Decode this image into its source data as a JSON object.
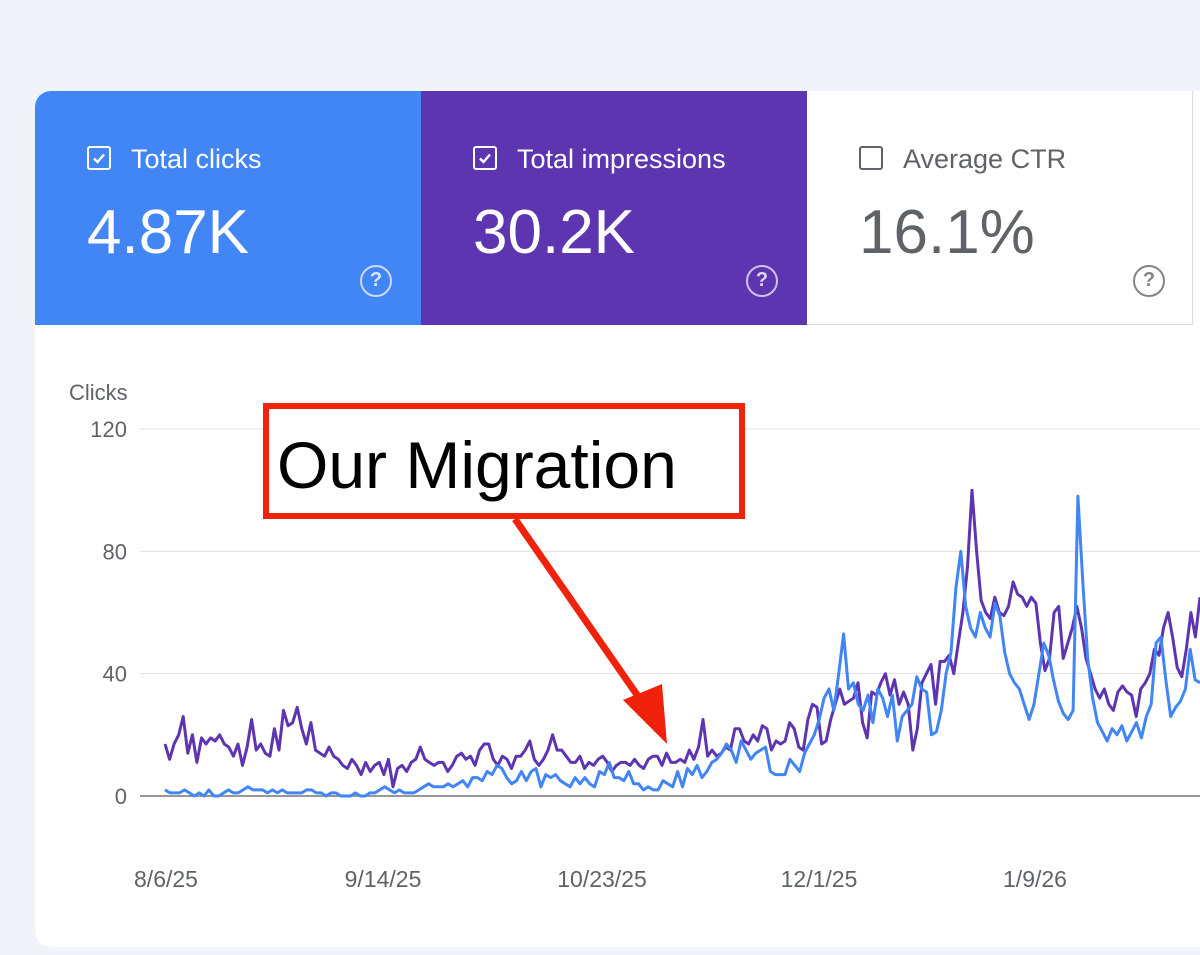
{
  "summary_cards": {
    "clicks": {
      "label": "Total clicks",
      "value": "4.87K",
      "checked": true,
      "color": "#4285f4"
    },
    "impressions": {
      "label": "Total impressions",
      "value": "30.2K",
      "checked": true,
      "color": "#5e35b1"
    },
    "ctr": {
      "label": "Average CTR",
      "value": "16.1%",
      "checked": false
    }
  },
  "help_glyph": "?",
  "annotation": {
    "text": "Our Migration",
    "color": "#f0220b"
  },
  "chart_data": {
    "type": "line",
    "ylabel": "Clicks",
    "ylim": [
      0,
      120
    ],
    "yticks": [
      "120",
      "80",
      "40",
      "0"
    ],
    "xticks": [
      "8/6/25",
      "9/14/25",
      "10/23/25",
      "12/1/25",
      "1/9/26"
    ],
    "grid": true,
    "x_start": "8/6/25",
    "series": [
      {
        "color": "#5e35b1",
        "values": [
          17,
          12,
          17,
          20,
          26,
          14,
          20,
          11,
          19,
          17,
          19,
          18,
          20,
          17,
          16,
          13,
          17,
          10,
          16,
          25,
          15,
          17,
          14,
          13,
          22,
          15,
          28,
          23,
          24,
          29,
          22,
          17,
          24,
          15,
          14,
          13,
          16,
          13,
          12,
          10,
          9,
          12,
          10,
          7,
          11,
          8,
          10,
          11,
          7,
          12,
          3,
          9,
          10,
          8,
          11,
          12,
          16,
          12,
          11,
          10,
          11,
          11,
          8,
          10,
          13,
          14,
          12,
          13,
          10,
          15,
          17,
          17,
          12,
          10,
          13,
          12,
          9,
          13,
          13,
          15,
          18,
          12,
          10,
          12,
          15,
          20,
          15,
          15,
          13,
          11,
          11,
          13,
          9,
          11,
          10,
          12,
          13,
          11,
          8,
          10,
          11,
          11,
          10,
          12,
          10,
          9,
          12,
          13,
          13,
          10,
          14,
          11,
          11,
          12,
          11,
          15,
          12,
          16,
          25,
          13,
          15,
          13,
          14,
          16,
          15,
          22,
          22,
          18,
          17,
          20,
          18,
          23,
          22,
          15,
          18,
          17,
          18,
          24,
          22,
          16,
          15,
          25,
          30,
          29,
          17,
          18,
          25,
          30,
          35,
          30,
          31,
          32,
          37,
          24,
          19,
          34,
          33,
          37,
          40,
          33,
          38,
          30,
          34,
          30,
          15,
          22,
          37,
          40,
          43,
          30,
          44,
          44,
          46,
          40,
          50,
          60,
          75,
          100,
          80,
          64,
          60,
          58,
          65,
          60,
          59,
          62,
          70,
          66,
          65,
          62,
          65,
          63,
          50,
          41,
          45,
          60,
          62,
          45,
          50,
          55,
          62,
          55,
          45,
          40,
          35,
          32,
          35,
          30,
          28,
          34,
          36,
          34,
          33,
          26,
          35,
          37,
          40,
          48,
          46,
          55,
          60,
          52,
          42,
          39,
          48,
          60,
          52,
          65
        ],
        "name": ""
      },
      {
        "color": "#4285f4",
        "values": [
          2,
          1,
          1,
          1,
          2,
          1,
          0,
          1,
          0,
          2,
          0,
          0,
          1,
          2,
          1,
          1,
          2,
          3,
          2,
          2,
          2,
          1,
          2,
          1,
          2,
          1,
          1,
          1,
          1,
          2,
          2,
          1,
          1,
          0,
          1,
          1,
          0,
          0,
          0,
          1,
          0,
          0,
          1,
          1,
          2,
          3,
          2,
          1,
          2,
          1,
          1,
          1,
          2,
          3,
          4,
          3,
          3,
          3,
          4,
          3,
          4,
          5,
          3,
          6,
          6,
          5,
          8,
          7,
          10,
          9,
          6,
          4,
          5,
          8,
          5,
          8,
          9,
          3,
          7,
          6,
          7,
          5,
          4,
          3,
          6,
          4,
          6,
          4,
          3,
          8,
          7,
          11,
          6,
          6,
          5,
          8,
          4,
          4,
          2,
          3,
          2,
          2,
          5,
          4,
          3,
          8,
          3,
          9,
          7,
          10,
          6,
          8,
          11,
          12,
          14,
          17,
          15,
          11,
          18,
          15,
          12,
          14,
          15,
          16,
          8,
          7,
          7,
          7,
          12,
          10,
          8,
          14,
          17,
          20,
          25,
          32,
          35,
          28,
          40,
          53,
          35,
          37,
          30,
          28,
          33,
          24,
          35,
          32,
          26,
          33,
          18,
          26,
          28,
          30,
          39,
          35,
          34,
          20,
          21,
          28,
          40,
          47,
          68,
          80,
          62,
          55,
          52,
          60,
          55,
          52,
          63,
          59,
          47,
          40,
          37,
          35,
          30,
          25,
          30,
          40,
          50,
          46,
          38,
          31,
          27,
          25,
          28,
          98,
          70,
          45,
          32,
          24,
          21,
          18,
          22,
          20,
          23,
          18,
          21,
          24,
          19,
          26,
          30,
          50,
          52,
          38,
          26,
          29,
          31,
          35,
          48,
          38,
          37
        ]
      }
    ]
  }
}
